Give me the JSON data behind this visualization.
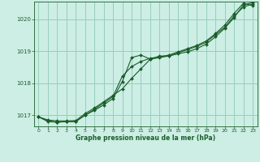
{
  "title": "Graphe pression niveau de la mer (hPa)",
  "background_color": "#cceee4",
  "grid_color": "#99ccbb",
  "line_color": "#1a5c2a",
  "xlim": [
    -0.5,
    23.5
  ],
  "ylim": [
    1016.65,
    1020.55
  ],
  "yticks": [
    1017,
    1018,
    1019,
    1020
  ],
  "xticks": [
    0,
    1,
    2,
    3,
    4,
    5,
    6,
    7,
    8,
    9,
    10,
    11,
    12,
    13,
    14,
    15,
    16,
    17,
    18,
    19,
    20,
    21,
    22,
    23
  ],
  "series1": {
    "x": [
      0,
      1,
      2,
      3,
      4,
      5,
      6,
      7,
      8,
      9,
      10,
      11,
      12,
      13,
      14,
      15,
      16,
      17,
      18,
      19,
      20,
      21,
      22,
      23
    ],
    "y": [
      1016.95,
      1016.85,
      1016.82,
      1016.82,
      1016.83,
      1017.05,
      1017.22,
      1017.42,
      1017.62,
      1017.82,
      1018.15,
      1018.45,
      1018.75,
      1018.85,
      1018.85,
      1018.92,
      1018.98,
      1019.08,
      1019.22,
      1019.45,
      1019.72,
      1020.05,
      1020.45,
      1020.52
    ]
  },
  "series2": {
    "x": [
      0,
      1,
      2,
      3,
      4,
      5,
      6,
      7,
      8,
      9,
      10,
      11,
      12,
      13,
      14,
      15,
      16,
      17,
      18,
      19,
      20,
      21,
      22,
      23
    ],
    "y": [
      1016.95,
      1016.82,
      1016.78,
      1016.8,
      1016.8,
      1017.0,
      1017.15,
      1017.32,
      1017.52,
      1018.05,
      1018.8,
      1018.88,
      1018.75,
      1018.8,
      1018.85,
      1018.95,
      1019.05,
      1019.15,
      1019.28,
      1019.52,
      1019.75,
      1020.1,
      1020.38,
      1020.48
    ]
  },
  "series3": {
    "x": [
      0,
      1,
      2,
      3,
      4,
      5,
      6,
      7,
      8,
      9,
      10,
      11,
      12,
      13,
      14,
      15,
      16,
      17,
      18,
      19,
      20,
      21,
      22,
      23
    ],
    "y": [
      1016.95,
      1016.8,
      1016.78,
      1016.8,
      1016.8,
      1017.0,
      1017.18,
      1017.38,
      1017.58,
      1018.22,
      1018.52,
      1018.68,
      1018.78,
      1018.82,
      1018.88,
      1018.98,
      1019.08,
      1019.18,
      1019.32,
      1019.55,
      1019.82,
      1020.18,
      1020.5,
      1020.42
    ]
  }
}
